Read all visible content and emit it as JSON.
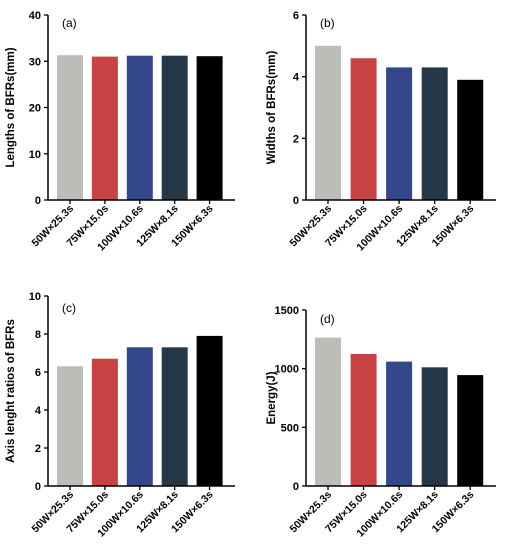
{
  "chart_data": [
    {
      "type": "bar",
      "panel_label": "(a)",
      "ylabel": "Lengths of BFRs(mm)",
      "categories": [
        "50W×25.3s",
        "75W×15.0s",
        "100W×10.6s",
        "125W×8.1s",
        "150W×6.3s"
      ],
      "values": [
        31.3,
        31.0,
        31.2,
        31.2,
        31.1
      ],
      "ylim": [
        0,
        40
      ],
      "yticks": [
        0,
        10,
        20,
        30,
        40
      ],
      "colors": [
        "#bcbcb8",
        "#c84444",
        "#33478a",
        "#253848",
        "#000000"
      ],
      "grid": false
    },
    {
      "type": "bar",
      "panel_label": "(b)",
      "ylabel": "Widths of BFRs(mm)",
      "categories": [
        "50W×25.3s",
        "75W×15.0s",
        "100W×10.6s",
        "125W×8.1s",
        "150W×6.3s"
      ],
      "values": [
        5.0,
        4.6,
        4.3,
        4.3,
        3.9
      ],
      "ylim": [
        0,
        6
      ],
      "yticks": [
        0,
        2,
        4,
        6
      ],
      "colors": [
        "#bcbcb8",
        "#c84444",
        "#33478a",
        "#253848",
        "#000000"
      ],
      "grid": false
    },
    {
      "type": "bar",
      "panel_label": "(c)",
      "ylabel": "Axis lenght ratios of BFRs",
      "categories": [
        "50W×25.3s",
        "75W×15.0s",
        "100W×10.6s",
        "125W×8.1s",
        "150W×6.3s"
      ],
      "values": [
        6.3,
        6.7,
        7.3,
        7.3,
        7.9
      ],
      "ylim": [
        0,
        10
      ],
      "yticks": [
        0,
        2,
        4,
        6,
        8,
        10
      ],
      "colors": [
        "#bcbcb8",
        "#c84444",
        "#33478a",
        "#253848",
        "#000000"
      ],
      "grid": false
    },
    {
      "type": "bar",
      "panel_label": "(d)",
      "ylabel": "Energy(J)",
      "categories": [
        "50W×25.3s",
        "75W×15.0s",
        "100W×10.6s",
        "125W×8.1s",
        "150W×6.3s"
      ],
      "values": [
        1265,
        1125,
        1060,
        1012,
        945
      ],
      "ylim": [
        0,
        1500
      ],
      "yticks": [
        0,
        500,
        1000,
        1500
      ],
      "colors": [
        "#bcbcb8",
        "#c84444",
        "#33478a",
        "#253848",
        "#000000"
      ],
      "grid": false
    }
  ]
}
